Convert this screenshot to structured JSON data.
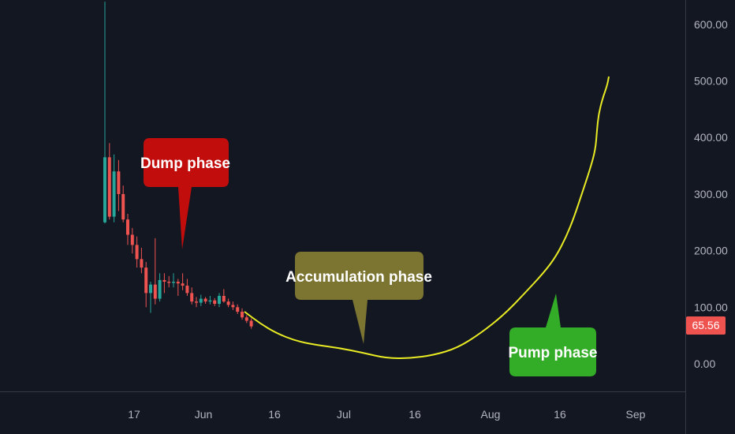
{
  "chart_data": {
    "type": "candlestick",
    "y_axis": {
      "min": -30,
      "max": 640,
      "ticks": [
        "0.00",
        "100.00",
        "200.00",
        "300.00",
        "400.00",
        "500.00",
        "600.00"
      ],
      "position": "right"
    },
    "x_axis": {
      "ticks": [
        "17",
        "Jun",
        "16",
        "Jul",
        "16",
        "Aug",
        "16",
        "Sep"
      ]
    },
    "last_price": {
      "label": "65.56",
      "value": 65.56,
      "color": "#ef5350"
    },
    "candles": [
      {
        "o": 250,
        "h": 640,
        "l": 248,
        "c": 365
      },
      {
        "o": 365,
        "h": 390,
        "l": 255,
        "c": 260
      },
      {
        "o": 260,
        "h": 370,
        "l": 250,
        "c": 340
      },
      {
        "o": 340,
        "h": 360,
        "l": 270,
        "c": 300
      },
      {
        "o": 300,
        "h": 315,
        "l": 250,
        "c": 255
      },
      {
        "o": 255,
        "h": 265,
        "l": 210,
        "c": 228
      },
      {
        "o": 228,
        "h": 240,
        "l": 195,
        "c": 210
      },
      {
        "o": 210,
        "h": 225,
        "l": 170,
        "c": 185
      },
      {
        "o": 185,
        "h": 205,
        "l": 160,
        "c": 170
      },
      {
        "o": 170,
        "h": 180,
        "l": 100,
        "c": 125
      },
      {
        "o": 125,
        "h": 145,
        "l": 90,
        "c": 140
      },
      {
        "o": 140,
        "h": 222,
        "l": 105,
        "c": 115
      },
      {
        "o": 115,
        "h": 160,
        "l": 110,
        "c": 148
      },
      {
        "o": 148,
        "h": 160,
        "l": 125,
        "c": 145
      },
      {
        "o": 145,
        "h": 155,
        "l": 135,
        "c": 143
      },
      {
        "o": 143,
        "h": 160,
        "l": 135,
        "c": 145
      },
      {
        "o": 145,
        "h": 150,
        "l": 120,
        "c": 142
      },
      {
        "o": 142,
        "h": 160,
        "l": 130,
        "c": 138
      },
      {
        "o": 138,
        "h": 150,
        "l": 120,
        "c": 125
      },
      {
        "o": 125,
        "h": 135,
        "l": 105,
        "c": 110
      },
      {
        "o": 110,
        "h": 118,
        "l": 100,
        "c": 108
      },
      {
        "o": 108,
        "h": 122,
        "l": 102,
        "c": 115
      },
      {
        "o": 115,
        "h": 118,
        "l": 106,
        "c": 110
      },
      {
        "o": 110,
        "h": 120,
        "l": 105,
        "c": 112
      },
      {
        "o": 112,
        "h": 116,
        "l": 102,
        "c": 106
      },
      {
        "o": 106,
        "h": 125,
        "l": 100,
        "c": 120
      },
      {
        "o": 120,
        "h": 132,
        "l": 108,
        "c": 110
      },
      {
        "o": 110,
        "h": 115,
        "l": 100,
        "c": 104
      },
      {
        "o": 104,
        "h": 110,
        "l": 95,
        "c": 100
      },
      {
        "o": 100,
        "h": 105,
        "l": 88,
        "c": 92
      },
      {
        "o": 92,
        "h": 98,
        "l": 78,
        "c": 82
      },
      {
        "o": 82,
        "h": 86,
        "l": 72,
        "c": 76
      },
      {
        "o": 76,
        "h": 80,
        "l": 62,
        "c": 66
      }
    ],
    "projection_curve": [
      [
        310,
        395
      ],
      [
        330,
        410
      ],
      [
        350,
        422
      ],
      [
        375,
        432
      ],
      [
        400,
        437
      ],
      [
        430,
        441
      ],
      [
        460,
        447
      ],
      [
        490,
        454
      ],
      [
        520,
        454
      ],
      [
        550,
        450
      ],
      [
        580,
        441
      ],
      [
        610,
        422
      ],
      [
        640,
        398
      ],
      [
        665,
        372
      ],
      [
        690,
        345
      ],
      [
        705,
        325
      ],
      [
        718,
        300
      ],
      [
        728,
        275
      ],
      [
        738,
        245
      ],
      [
        748,
        215
      ],
      [
        755,
        190
      ],
      [
        757,
        165
      ],
      [
        759,
        145
      ],
      [
        764,
        125
      ],
      [
        770,
        108
      ],
      [
        772,
        97
      ]
    ],
    "annotations": [
      {
        "text": "Dump phase",
        "color": "#c20d0d"
      },
      {
        "text": "Accumulation phase",
        "color": "#7c7532"
      },
      {
        "text": "Pump phase",
        "color": "#33ad27"
      }
    ],
    "colors": {
      "up": "#26a69a",
      "down": "#ef5350",
      "curve": "#e8ea23",
      "background": "#131722",
      "axis": "#363a45"
    }
  }
}
